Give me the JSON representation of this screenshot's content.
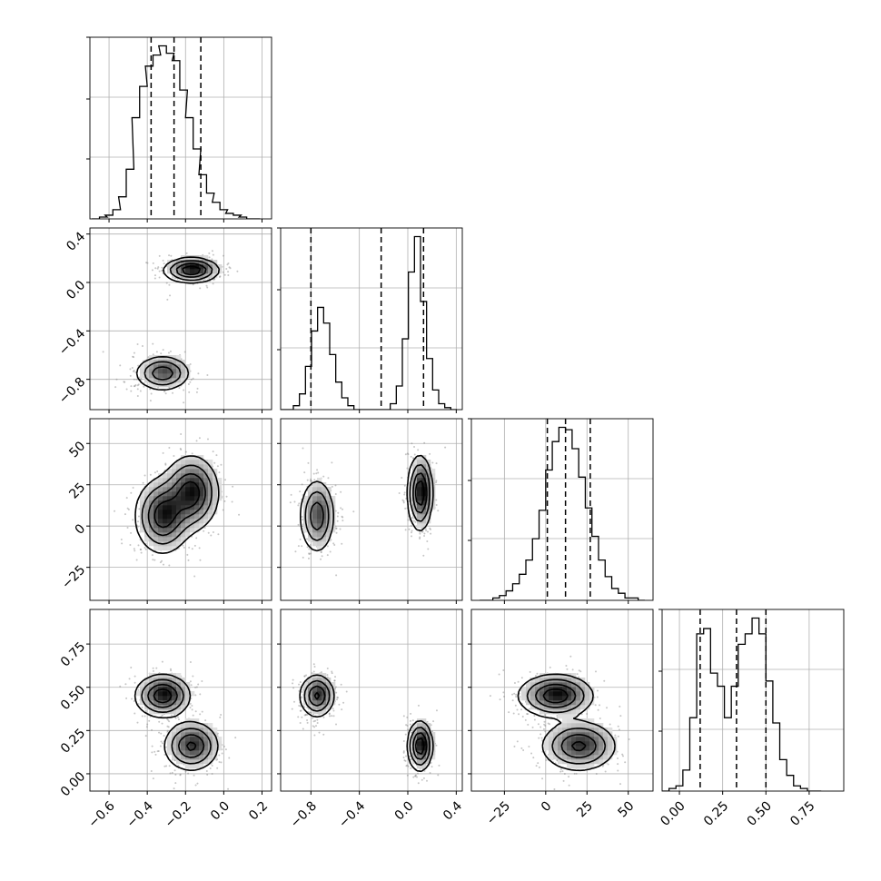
{
  "chart_data": {
    "type": "corner",
    "title": "",
    "parameters": [
      {
        "range": [
          -0.7,
          0.25
        ],
        "ticks": [
          -0.6,
          -0.4,
          -0.2,
          0.0,
          0.2
        ],
        "tick_labels": [
          "−0.6",
          "−0.4",
          "−0.2",
          "0.0",
          "0.2"
        ],
        "quantiles": [
          -0.38,
          -0.26,
          -0.12
        ]
      },
      {
        "range": [
          -1.05,
          0.45
        ],
        "ticks": [
          -0.8,
          -0.4,
          0.0,
          0.4
        ],
        "tick_labels": [
          "−0.8",
          "−0.4",
          "0.0",
          "0.4"
        ],
        "quantiles": [
          -0.8,
          -0.22,
          0.13
        ]
      },
      {
        "range": [
          -45,
          65
        ],
        "ticks": [
          -25,
          0,
          25,
          50
        ],
        "tick_labels": [
          "−25",
          "0",
          "25",
          "50"
        ],
        "quantiles": [
          1,
          12,
          27
        ]
      },
      {
        "range": [
          -0.1,
          0.95
        ],
        "ticks": [
          0.0,
          0.25,
          0.5,
          0.75
        ],
        "tick_labels": [
          "0.00",
          "0.25",
          "0.50",
          "0.75"
        ],
        "quantiles": [
          0.12,
          0.33,
          0.5
        ]
      }
    ],
    "diagonal_histograms": [
      {
        "x": [
          -0.67,
          -0.63,
          -0.6,
          -0.56,
          -0.53,
          -0.49,
          -0.46,
          -0.42,
          -0.39,
          -0.35,
          -0.32,
          -0.28,
          -0.25,
          -0.21,
          -0.18,
          -0.14,
          -0.11,
          -0.07,
          -0.04,
          0.0,
          0.03,
          0.07,
          0.1,
          0.14,
          0.17
        ],
        "counts": [
          0,
          1,
          2,
          5,
          12,
          27,
          55,
          72,
          83,
          89,
          94,
          90,
          86,
          70,
          55,
          38,
          24,
          14,
          9,
          5,
          3,
          2,
          1,
          0,
          0
        ]
      },
      {
        "x": [
          -1.02,
          -0.97,
          -0.92,
          -0.87,
          -0.82,
          -0.77,
          -0.72,
          -0.67,
          -0.62,
          -0.57,
          -0.52,
          -0.47,
          -0.42,
          -0.37,
          -0.32,
          -0.27,
          -0.22,
          -0.17,
          -0.12,
          -0.07,
          -0.02,
          0.03,
          0.08,
          0.13,
          0.18,
          0.23,
          0.28,
          0.33,
          0.38
        ],
        "counts": [
          0,
          0,
          2,
          8,
          22,
          40,
          52,
          44,
          28,
          14,
          6,
          2,
          0,
          0,
          0,
          0,
          0,
          0,
          3,
          12,
          36,
          70,
          88,
          55,
          26,
          10,
          3,
          1,
          0
        ]
      },
      {
        "x": [
          -38,
          -34,
          -30,
          -26,
          -22,
          -18,
          -14,
          -10,
          -6,
          -2,
          2,
          6,
          10,
          14,
          18,
          22,
          26,
          30,
          34,
          38,
          42,
          46,
          50,
          54,
          58
        ],
        "counts": [
          0,
          0,
          1,
          2,
          4,
          7,
          11,
          17,
          26,
          38,
          55,
          67,
          73,
          72,
          64,
          52,
          39,
          27,
          17,
          10,
          5,
          3,
          1,
          1,
          0
        ]
      },
      {
        "x": [
          -0.08,
          -0.04,
          0.0,
          0.04,
          0.08,
          0.12,
          0.16,
          0.2,
          0.24,
          0.28,
          0.32,
          0.36,
          0.4,
          0.44,
          0.48,
          0.52,
          0.56,
          0.6,
          0.64,
          0.68,
          0.72,
          0.76,
          0.8
        ],
        "counts": [
          0,
          1,
          2,
          8,
          28,
          60,
          62,
          45,
          40,
          28,
          40,
          56,
          60,
          66,
          60,
          42,
          26,
          12,
          6,
          2,
          1,
          0,
          0
        ]
      }
    ],
    "components": [
      {
        "mean": [
          -0.32,
          -0.75,
          6,
          0.45
        ],
        "sd": [
          0.07,
          0.07,
          11,
          0.06
        ]
      },
      {
        "mean": [
          -0.17,
          0.1,
          20,
          0.16
        ],
        "sd": [
          0.07,
          0.05,
          11,
          0.07
        ]
      }
    ],
    "grid": true,
    "colors": {
      "axis": "#000000",
      "grid": "#b0b0b0",
      "points": "#808080",
      "contour": "#000000"
    }
  }
}
